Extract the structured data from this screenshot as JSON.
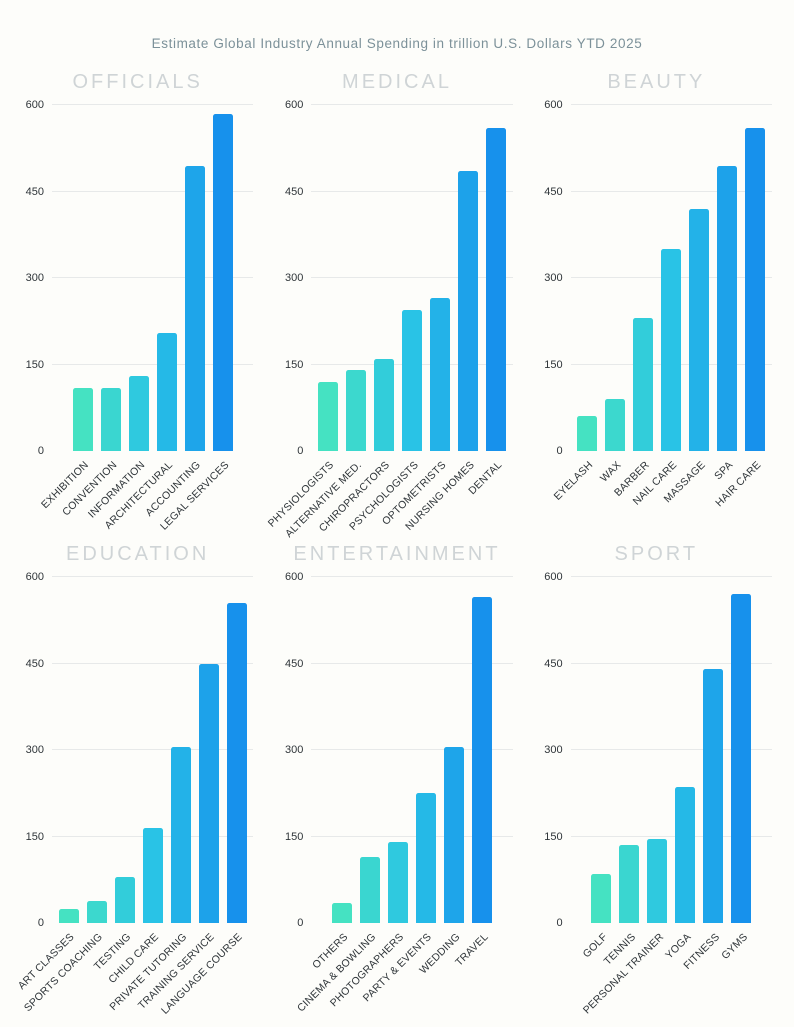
{
  "page": {
    "title": "Estimate Global Industry Annual Spending in trillion U.S. Dollars YTD 2025"
  },
  "palette": {
    "bar_gradient": [
      "#45E2C2",
      "#29C3E6",
      "#1791EC"
    ],
    "gridline": "#e7e9e9",
    "chart_title": "#cfd4d6",
    "page_title": "#7c9199",
    "axis_label": "#2f3539",
    "background": "#fdfdfa"
  },
  "axis": {
    "ticks": [
      0,
      150,
      300,
      450,
      600
    ],
    "max": 600
  },
  "chart_data": [
    {
      "type": "bar",
      "title": "OFFICIALS",
      "categories": [
        "EXHIBITION",
        "CONVENTION",
        "INFORMATION",
        "ARCHITECTURAL",
        "ACCOUNTING",
        "LEGAL SERVICES"
      ],
      "values": [
        110,
        110,
        130,
        205,
        495,
        585
      ],
      "ylim": [
        0,
        600
      ],
      "yticks": [
        0,
        150,
        300,
        450,
        600
      ],
      "grid": true,
      "legend": false
    },
    {
      "type": "bar",
      "title": "MEDICAL",
      "categories": [
        "PHYSIOLOGISTS",
        "ALTERNATIVE MED.",
        "CHIROPRACTORS",
        "PSYCHOLOGISTS",
        "OPTOMETRISTS",
        "NURSING HOMES",
        "DENTAL"
      ],
      "values": [
        120,
        140,
        160,
        245,
        265,
        485,
        560
      ],
      "ylim": [
        0,
        600
      ],
      "yticks": [
        0,
        150,
        300,
        450,
        600
      ],
      "grid": true,
      "legend": false
    },
    {
      "type": "bar",
      "title": "BEAUTY",
      "categories": [
        "EYELASH",
        "WAX",
        "BARBER",
        "NAIL CARE",
        "MASSAGE",
        "SPA",
        "HAIR CARE"
      ],
      "values": [
        60,
        90,
        230,
        350,
        420,
        495,
        560
      ],
      "ylim": [
        0,
        600
      ],
      "yticks": [
        0,
        150,
        300,
        450,
        600
      ],
      "grid": true,
      "legend": false
    },
    {
      "type": "bar",
      "title": "EDUCATION",
      "categories": [
        "ART CLASSES",
        "SPORTS COACHING",
        "TESTING",
        "CHILD CARE",
        "PRIVATE TUTORING",
        "TRAINING SERVICE",
        "LANGUAGE COURSE"
      ],
      "values": [
        25,
        38,
        80,
        165,
        305,
        450,
        555
      ],
      "ylim": [
        0,
        600
      ],
      "yticks": [
        0,
        150,
        300,
        450,
        600
      ],
      "grid": true,
      "legend": false
    },
    {
      "type": "bar",
      "title": "ENTERTAINMENT",
      "categories": [
        "OTHERS",
        "CINEMA & BOWLING",
        "PHOTOGRAPHERS",
        "PARTY & EVENTS",
        "WEDDING",
        "TRAVEL"
      ],
      "values": [
        35,
        115,
        140,
        225,
        305,
        565
      ],
      "ylim": [
        0,
        600
      ],
      "yticks": [
        0,
        150,
        300,
        450,
        600
      ],
      "grid": true,
      "legend": false
    },
    {
      "type": "bar",
      "title": "SPORT",
      "categories": [
        "GOLF",
        "TENNIS",
        "PERSONAL TRAINER",
        "YOGA",
        "FITNESS",
        "GYMS"
      ],
      "values": [
        85,
        135,
        145,
        235,
        440,
        570
      ],
      "ylim": [
        0,
        600
      ],
      "yticks": [
        0,
        150,
        300,
        450,
        600
      ],
      "grid": true,
      "legend": false
    }
  ]
}
